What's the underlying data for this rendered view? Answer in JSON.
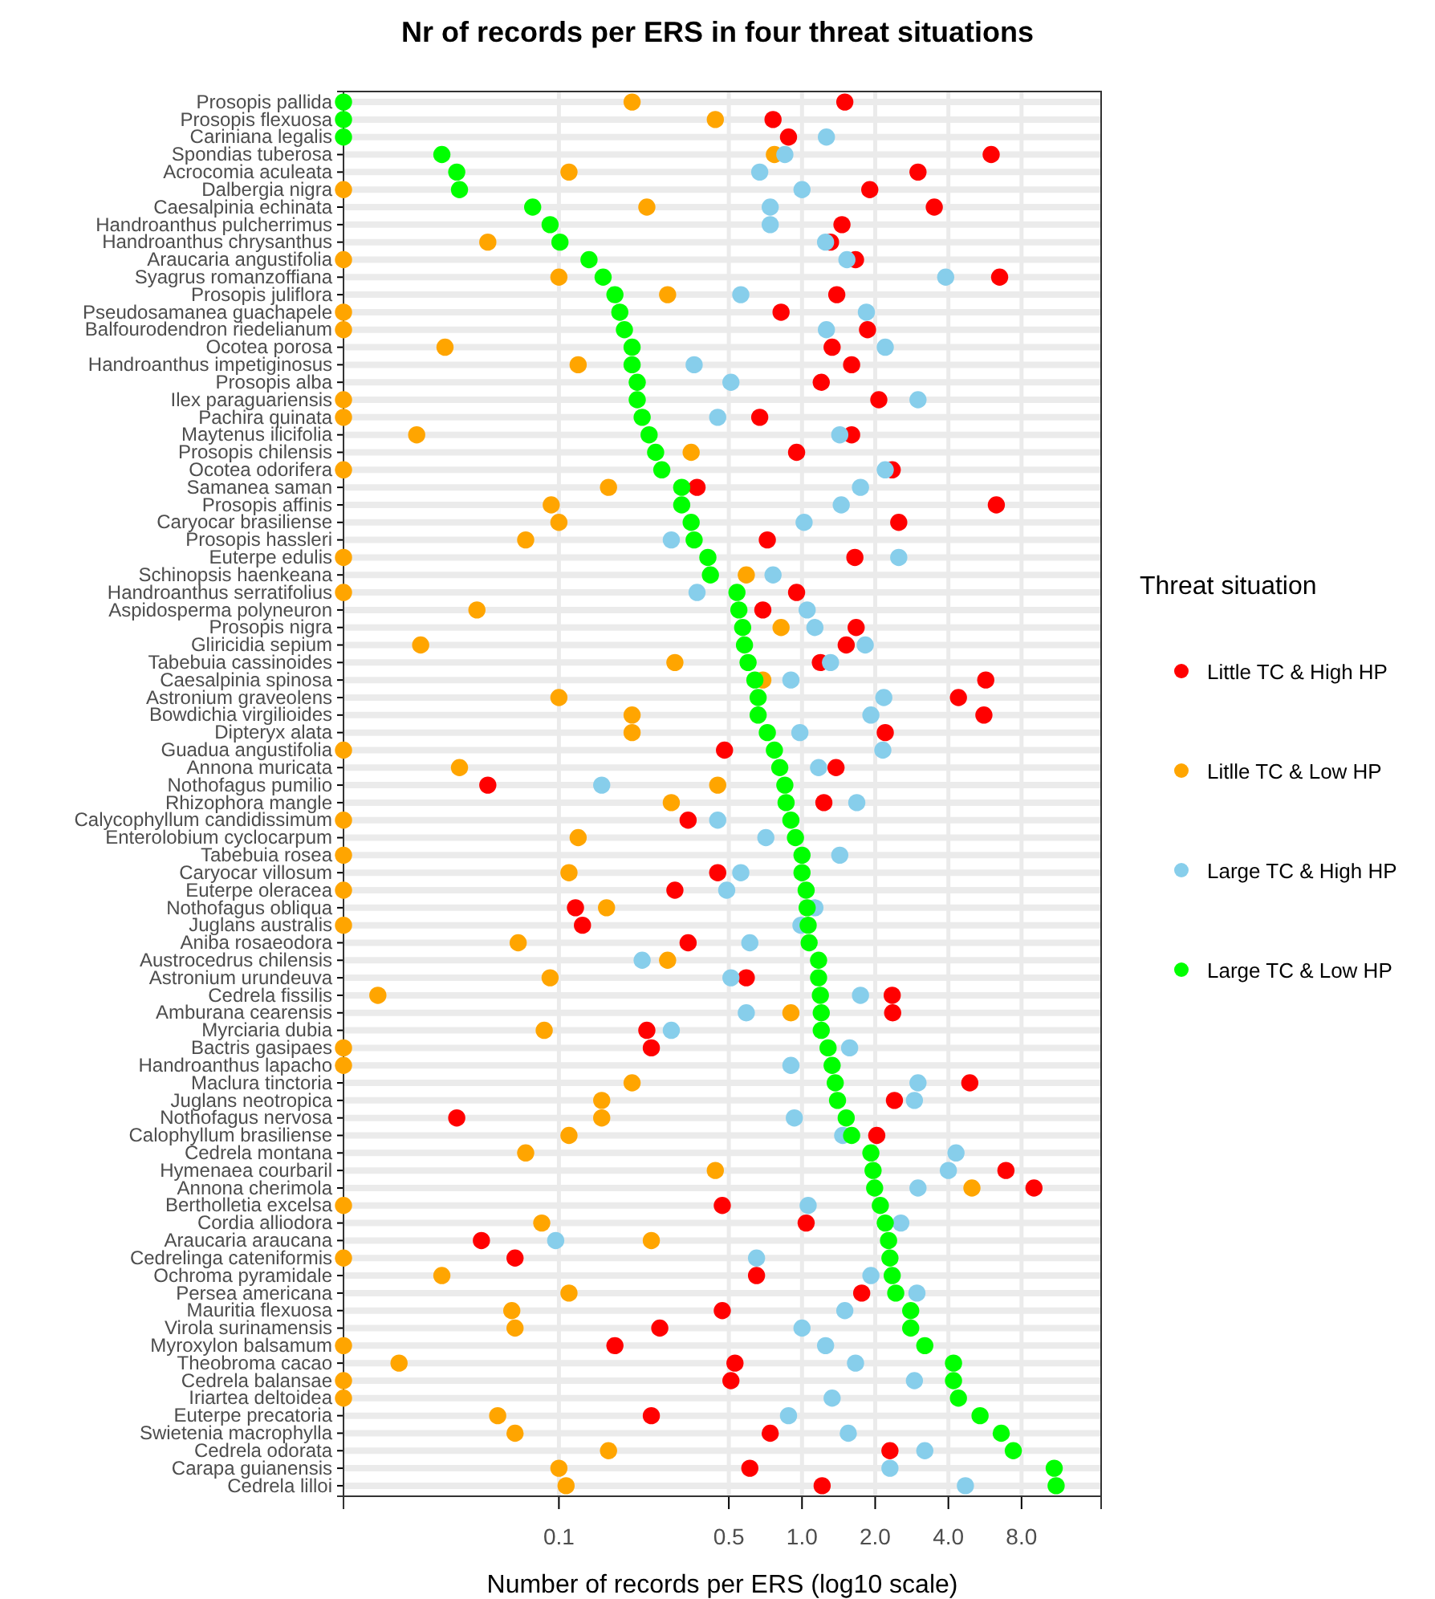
{
  "chart_data": {
    "type": "scatter",
    "orientation": "horizontal",
    "title": "Nr of records per ERS in four threat situations",
    "xlabel": "Number of records per ERS (log10 scale)",
    "legend_title": "Threat situation",
    "legend": "right",
    "log": "x",
    "grid": true,
    "marker": "circle",
    "xlim": [
      0.013,
      17
    ],
    "xticks": [
      0.1,
      0.5,
      {
        "value": 1,
        "label": "1.0"
      },
      {
        "value": 2,
        "label": "2.0"
      },
      {
        "value": 4,
        "label": "4.0"
      },
      {
        "value": 8,
        "label": "8.0"
      }
    ],
    "categories": [
      "Prosopis pallida",
      "Prosopis flexuosa",
      "Cariniana legalis",
      "Spondias tuberosa",
      "Acrocomia aculeata",
      "Dalbergia nigra",
      "Caesalpinia echinata",
      "Handroanthus pulcherrimus",
      "Handroanthus chrysanthus",
      "Araucaria angustifolia",
      "Syagrus romanzoffiana",
      "Prosopis juliflora",
      "Pseudosamanea guachapele",
      "Balfourodendron riedelianum",
      "Ocotea porosa",
      "Handroanthus impetiginosus",
      "Prosopis alba",
      "Ilex paraguariensis",
      "Pachira quinata",
      "Maytenus ilicifolia",
      "Prosopis chilensis",
      "Ocotea odorifera",
      "Samanea saman",
      "Prosopis affinis",
      "Caryocar brasiliense",
      "Prosopis hassleri",
      "Euterpe edulis",
      "Schinopsis haenkeana",
      "Handroanthus serratifolius",
      "Aspidosperma polyneuron",
      "Prosopis nigra",
      "Gliricidia sepium",
      "Tabebuia cassinoides",
      "Caesalpinia spinosa",
      "Astronium graveolens",
      "Bowdichia virgilioides",
      "Dipteryx alata",
      "Guadua angustifolia",
      "Annona muricata",
      "Nothofagus pumilio",
      "Rhizophora mangle",
      "Calycophyllum candidissimum",
      "Enterolobium cyclocarpum",
      "Tabebuia rosea",
      "Caryocar villosum",
      "Euterpe oleracea",
      "Nothofagus obliqua",
      "Juglans australis",
      "Aniba rosaeodora",
      "Austrocedrus chilensis",
      "Astronium urundeuva",
      "Cedrela fissilis",
      "Amburana cearensis",
      "Myrciaria dubia",
      "Bactris gasipaes",
      "Handroanthus lapacho",
      "Maclura tinctoria",
      "Juglans neotropica",
      "Nothofagus nervosa",
      "Calophyllum brasiliense",
      "Cedrela montana",
      "Hymenaea courbaril",
      "Annona cherimola",
      "Bertholletia excelsa",
      "Cordia alliodora",
      "Araucaria araucana",
      "Cedrelinga cateniformis",
      "Ochroma pyramidale",
      "Persea americana",
      "Mauritia flexuosa",
      "Virola surinamensis",
      "Myroxylon balsamum",
      "Theobroma cacao",
      "Cedrela balansae",
      "Iriartea deltoidea",
      "Euterpe precatoria",
      "Swietenia macrophylla",
      "Cedrela odorata",
      "Carapa guianensis",
      "Cedrela lilloi"
    ],
    "series": [
      {
        "name": "Little TC & High HP",
        "color": "#ff0000",
        "values": [
          1.5,
          0.76,
          0.88,
          6.0,
          3.0,
          1.9,
          3.5,
          1.46,
          1.31,
          1.66,
          6.5,
          1.39,
          0.82,
          1.86,
          1.33,
          1.6,
          1.2,
          2.07,
          0.67,
          1.6,
          0.95,
          2.35,
          0.37,
          6.3,
          2.5,
          0.72,
          1.65,
          null,
          0.95,
          0.69,
          1.67,
          1.52,
          1.19,
          5.7,
          4.4,
          5.6,
          2.2,
          0.48,
          1.38,
          0.051,
          1.23,
          0.34,
          null,
          null,
          0.45,
          0.3,
          0.117,
          0.125,
          0.34,
          null,
          0.59,
          2.35,
          2.36,
          0.23,
          0.24,
          null,
          4.9,
          2.4,
          0.038,
          2.03,
          null,
          6.9,
          9.0,
          0.47,
          1.04,
          0.048,
          0.066,
          0.65,
          1.76,
          0.47,
          0.26,
          0.17,
          0.53,
          0.51,
          null,
          0.24,
          0.74,
          2.3,
          0.61,
          1.21
        ]
      },
      {
        "name": "Litlle TC & Low HP",
        "color": "#ffa500",
        "values": [
          0.2,
          0.44,
          null,
          0.77,
          0.11,
          0.013,
          0.23,
          null,
          0.051,
          0.013,
          0.1,
          0.28,
          0.013,
          0.013,
          0.034,
          0.12,
          null,
          0.013,
          0.013,
          0.026,
          0.35,
          0.013,
          0.16,
          0.093,
          0.1,
          0.073,
          0.013,
          0.59,
          0.013,
          0.046,
          0.82,
          0.027,
          0.3,
          0.69,
          0.1,
          0.2,
          0.2,
          0.013,
          0.039,
          0.45,
          0.29,
          0.013,
          0.12,
          0.013,
          0.11,
          0.013,
          0.157,
          0.013,
          0.068,
          0.28,
          0.092,
          0.018,
          0.9,
          0.087,
          0.013,
          0.013,
          0.2,
          0.15,
          0.15,
          0.11,
          0.073,
          0.44,
          5.0,
          0.013,
          0.085,
          0.24,
          0.013,
          0.033,
          0.11,
          0.064,
          0.066,
          0.013,
          0.022,
          0.013,
          0.013,
          0.056,
          0.066,
          0.16,
          0.1,
          0.107
        ]
      },
      {
        "name": "Large TC & High HP",
        "color": "#87ceeb",
        "values": [
          null,
          null,
          1.26,
          0.85,
          0.67,
          1.0,
          0.74,
          0.74,
          1.25,
          1.53,
          3.9,
          0.56,
          1.84,
          1.26,
          2.2,
          0.36,
          0.51,
          3.0,
          0.45,
          1.43,
          null,
          2.2,
          1.74,
          1.45,
          1.02,
          0.29,
          2.5,
          0.76,
          0.37,
          1.05,
          1.13,
          1.82,
          1.31,
          0.9,
          2.17,
          1.92,
          0.98,
          2.15,
          1.17,
          0.15,
          1.68,
          0.45,
          0.71,
          1.43,
          0.56,
          0.49,
          1.13,
          0.99,
          0.61,
          0.22,
          0.51,
          1.74,
          0.59,
          0.29,
          1.57,
          0.9,
          3.0,
          2.9,
          0.93,
          1.47,
          4.3,
          4.0,
          3.0,
          1.06,
          2.55,
          0.097,
          0.65,
          1.92,
          2.97,
          1.5,
          1.0,
          1.25,
          1.66,
          2.9,
          1.33,
          0.88,
          1.55,
          3.2,
          2.3,
          4.7
        ]
      },
      {
        "name": "Large TC & Low HP",
        "color": "#00ff00",
        "values": [
          0.013,
          0.013,
          0.013,
          0.033,
          0.038,
          0.039,
          0.078,
          0.092,
          0.101,
          0.133,
          0.152,
          0.17,
          0.178,
          0.186,
          0.2,
          0.2,
          0.21,
          0.21,
          0.22,
          0.235,
          0.25,
          0.265,
          0.32,
          0.32,
          0.35,
          0.36,
          0.41,
          0.42,
          0.54,
          0.55,
          0.57,
          0.58,
          0.6,
          0.64,
          0.66,
          0.66,
          0.72,
          0.77,
          0.81,
          0.85,
          0.86,
          0.9,
          0.94,
          1.0,
          1.0,
          1.04,
          1.05,
          1.06,
          1.07,
          1.17,
          1.17,
          1.19,
          1.2,
          1.2,
          1.28,
          1.33,
          1.37,
          1.4,
          1.52,
          1.6,
          1.92,
          1.96,
          1.99,
          2.1,
          2.2,
          2.27,
          2.3,
          2.35,
          2.43,
          2.8,
          2.8,
          3.2,
          4.2,
          4.2,
          4.4,
          5.4,
          6.6,
          7.4,
          10.9,
          11.1
        ]
      }
    ]
  }
}
